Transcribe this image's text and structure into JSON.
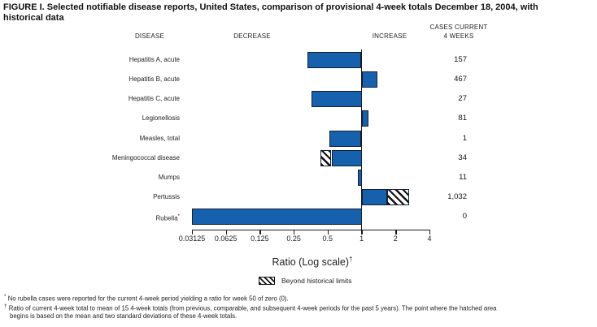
{
  "figure": {
    "title_lines": [
      "FIGURE I. Selected notifiable disease reports, United States, comparison of provisional 4-week totals December 18, 2004, with",
      "historical data"
    ],
    "columns": {
      "disease": "DISEASE",
      "decrease": "DECREASE",
      "increase": "INCREASE",
      "cases_line1": "CASES CURRENT",
      "cases_line2": "4 WEEKS"
    },
    "xlabel": "Ratio (Log scale)",
    "xlabel_note_mark": "†",
    "legend": {
      "hatch_label": "Beyond historical limits"
    },
    "footnotes": [
      {
        "mark": "*",
        "lines": [
          "No rubella cases were reported for the current 4-week period yielding a ratio for week 50 of zero (0)."
        ]
      },
      {
        "mark": "†",
        "lines": [
          "Ratio of current 4-week total to mean of 15 4-week totals (from previous, comparable, and subsequent 4-week periods for the past 5 years). The point where the hatched area",
          "begins is based on the mean and two standard deviations of these 4-week totals."
        ]
      }
    ]
  },
  "colors": {
    "bar_blue": "#1661ae",
    "bar_border": "#121f33",
    "axis_black": "#1a1a1a"
  },
  "chart_data": {
    "type": "bar",
    "orientation": "horizontal",
    "xscale": "log2",
    "xlim": [
      0.03125,
      4
    ],
    "x_ticks": [
      "0.03125",
      "0.0625",
      "0.125",
      "0.25",
      "0.5",
      "1",
      "2",
      "4"
    ],
    "reference_line": 1,
    "xlabel": "Ratio (Log scale)",
    "legend_position": "bottom-center",
    "rows": [
      {
        "disease": "Hepatitis A, acute",
        "ratio": 0.33,
        "cases": "157"
      },
      {
        "disease": "Hepatitis B, acute",
        "ratio": 1.39,
        "cases": "467"
      },
      {
        "disease": "Hepatitis C, acute",
        "ratio": 0.36,
        "cases": "27"
      },
      {
        "disease": "Legionellosis",
        "ratio": 1.15,
        "cases": "81"
      },
      {
        "disease": "Measles, total",
        "ratio": 0.52,
        "cases": "1"
      },
      {
        "disease": "Meningococcal disease",
        "ratio": 0.43,
        "cases": "34",
        "beyond_limit_start": 0.54
      },
      {
        "disease": "Mumps",
        "ratio": 0.93,
        "cases": "11"
      },
      {
        "disease": "Pertussis",
        "ratio": 2.64,
        "cases": "1,032",
        "beyond_limit_start": 1.69
      },
      {
        "disease": "Rubella",
        "ratio": 0.03125,
        "cases": "0",
        "clipped_at_min": true,
        "note_mark": "*"
      }
    ]
  }
}
